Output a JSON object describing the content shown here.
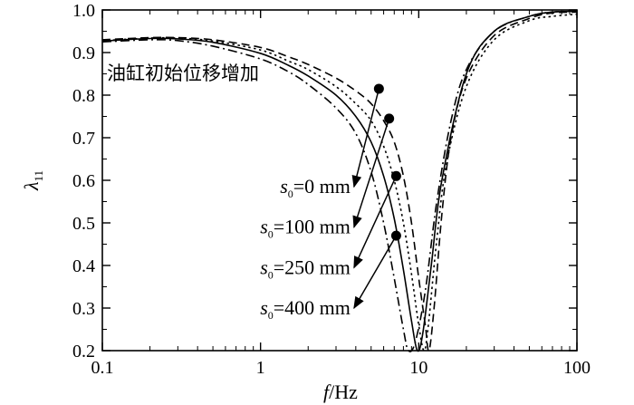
{
  "chart_data": {
    "type": "line",
    "xscale": "log",
    "xlim": [
      0.1,
      100
    ],
    "ylim": [
      0.2,
      1.0
    ],
    "x_ticks": [
      0.1,
      1,
      10,
      100
    ],
    "x_tick_labels": [
      "0.1",
      "1",
      "10",
      "100"
    ],
    "y_ticks": [
      0.2,
      0.3,
      0.4,
      0.5,
      0.6,
      0.7,
      0.8,
      0.9,
      1.0
    ],
    "y_tick_labels": [
      "0.2",
      "0.3",
      "0.4",
      "0.5",
      "0.6",
      "0.7",
      "0.8",
      "0.9",
      "1.0"
    ],
    "xlabel_italic": "f",
    "xlabel_unit": "/Hz",
    "ylabel_symbol": "λ",
    "ylabel_subscript": "11",
    "grid": false,
    "annotation_note": "油缸初始位移增加",
    "series": [
      {
        "style": "dashed",
        "label_var": "s",
        "label_sub": "0",
        "label_rest": "=0 mm",
        "points": [
          [
            0.1,
            0.93
          ],
          [
            0.2,
            0.935
          ],
          [
            0.3,
            0.935
          ],
          [
            0.5,
            0.93
          ],
          [
            1,
            0.912
          ],
          [
            1.5,
            0.89
          ],
          [
            2,
            0.872
          ],
          [
            3,
            0.84
          ],
          [
            4,
            0.81
          ],
          [
            5,
            0.78
          ],
          [
            6,
            0.74
          ],
          [
            7,
            0.69
          ],
          [
            8,
            0.61
          ],
          [
            9,
            0.5
          ],
          [
            10,
            0.37
          ],
          [
            11,
            0.26
          ],
          [
            11.6,
            0.2
          ],
          [
            12.5,
            0.3
          ],
          [
            14,
            0.52
          ],
          [
            16,
            0.7
          ],
          [
            20,
            0.84
          ],
          [
            30,
            0.94
          ],
          [
            50,
            0.98
          ],
          [
            70,
            0.993
          ],
          [
            100,
            0.995
          ]
        ]
      },
      {
        "style": "dotted",
        "label_var": "s",
        "label_sub": "0",
        "label_rest": "=100 mm",
        "points": [
          [
            0.1,
            0.928
          ],
          [
            0.2,
            0.934
          ],
          [
            0.3,
            0.934
          ],
          [
            0.5,
            0.927
          ],
          [
            1,
            0.906
          ],
          [
            1.5,
            0.88
          ],
          [
            2,
            0.86
          ],
          [
            3,
            0.82
          ],
          [
            4,
            0.78
          ],
          [
            5,
            0.74
          ],
          [
            6,
            0.68
          ],
          [
            7,
            0.6
          ],
          [
            8,
            0.5
          ],
          [
            9,
            0.38
          ],
          [
            10,
            0.26
          ],
          [
            10.8,
            0.2
          ],
          [
            11.5,
            0.26
          ],
          [
            13,
            0.46
          ],
          [
            15,
            0.64
          ],
          [
            20,
            0.82
          ],
          [
            30,
            0.93
          ],
          [
            50,
            0.975
          ],
          [
            70,
            0.985
          ],
          [
            100,
            0.99
          ]
        ]
      },
      {
        "style": "solid",
        "label_var": "s",
        "label_sub": "0",
        "label_rest": "=250 mm",
        "points": [
          [
            0.1,
            0.927
          ],
          [
            0.2,
            0.933
          ],
          [
            0.3,
            0.932
          ],
          [
            0.5,
            0.924
          ],
          [
            1,
            0.898
          ],
          [
            1.5,
            0.87
          ],
          [
            2,
            0.845
          ],
          [
            3,
            0.8
          ],
          [
            4,
            0.75
          ],
          [
            5,
            0.69
          ],
          [
            6,
            0.61
          ],
          [
            7,
            0.51
          ],
          [
            8,
            0.39
          ],
          [
            9,
            0.27
          ],
          [
            9.8,
            0.2
          ],
          [
            10.6,
            0.24
          ],
          [
            12,
            0.4
          ],
          [
            14,
            0.6
          ],
          [
            20,
            0.85
          ],
          [
            30,
            0.95
          ],
          [
            50,
            0.985
          ],
          [
            70,
            0.995
          ],
          [
            100,
            0.997
          ]
        ]
      },
      {
        "style": "dashdot",
        "label_var": "s",
        "label_sub": "0",
        "label_rest": "=400 mm",
        "points": [
          [
            0.1,
            0.925
          ],
          [
            0.2,
            0.93
          ],
          [
            0.3,
            0.928
          ],
          [
            0.5,
            0.915
          ],
          [
            1,
            0.885
          ],
          [
            1.5,
            0.855
          ],
          [
            2,
            0.825
          ],
          [
            3,
            0.77
          ],
          [
            4,
            0.71
          ],
          [
            5,
            0.62
          ],
          [
            6,
            0.5
          ],
          [
            7,
            0.37
          ],
          [
            8,
            0.25
          ],
          [
            8.6,
            0.2
          ],
          [
            9.5,
            0.22
          ],
          [
            11,
            0.34
          ],
          [
            13,
            0.55
          ],
          [
            16,
            0.74
          ],
          [
            20,
            0.86
          ],
          [
            30,
            0.95
          ],
          [
            50,
            0.985
          ],
          [
            70,
            0.995
          ],
          [
            100,
            0.997
          ]
        ]
      }
    ],
    "markers": [
      {
        "x": 5.6,
        "y": 0.815,
        "arrow_to_x": 3.9,
        "arrow_to_y": 0.585
      },
      {
        "x": 6.5,
        "y": 0.745,
        "arrow_to_x": 3.9,
        "arrow_to_y": 0.49
      },
      {
        "x": 7.2,
        "y": 0.61,
        "arrow_to_x": 3.9,
        "arrow_to_y": 0.395
      },
      {
        "x": 7.2,
        "y": 0.47,
        "arrow_to_x": 3.9,
        "arrow_to_y": 0.3
      }
    ],
    "colors": {
      "line": "#000000",
      "background": "#ffffff"
    }
  }
}
